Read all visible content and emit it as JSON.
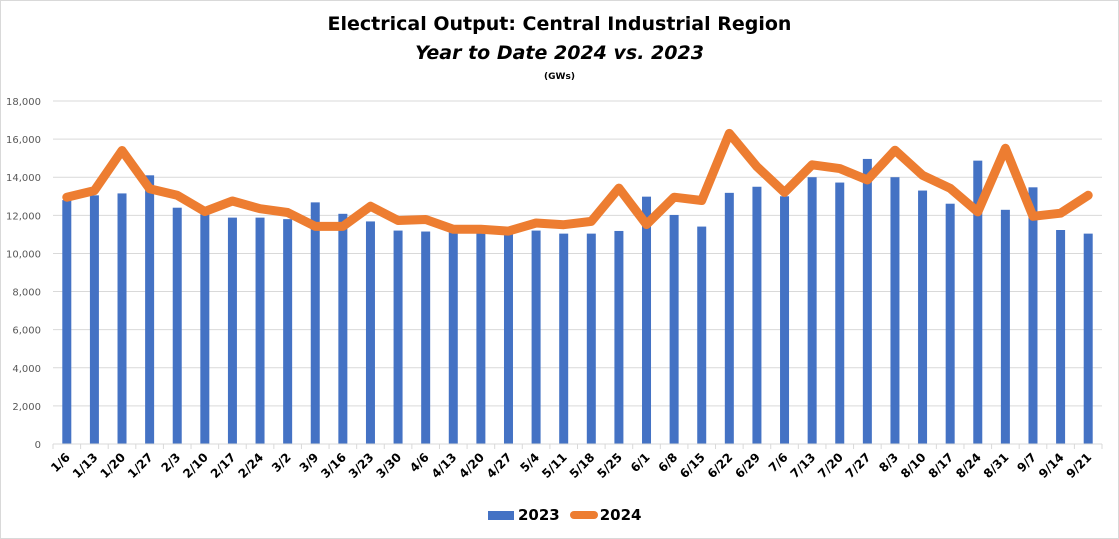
{
  "chart_data": {
    "type": "bar+line",
    "title": "Electrical Output:  Central Industrial Region",
    "subtitle": "Year to Date 2024 vs. 2023",
    "units": "(GWs)",
    "xlabel": "",
    "ylabel": "",
    "ylim": [
      0,
      18000
    ],
    "yticks": [
      0,
      2000,
      4000,
      6000,
      8000,
      10000,
      12000,
      14000,
      16000,
      18000
    ],
    "ytick_labels": [
      "0",
      "2,000",
      "4,000",
      "6,000",
      "8,000",
      "10,000",
      "12,000",
      "14,000",
      "16,000",
      "18,000"
    ],
    "grid": true,
    "legend_position": "bottom",
    "categories": [
      "1/6",
      "1/13",
      "1/20",
      "1/27",
      "2/3",
      "2/10",
      "2/17",
      "2/24",
      "3/2",
      "3/9",
      "3/16",
      "3/23",
      "3/30",
      "4/6",
      "4/13",
      "4/20",
      "4/27",
      "5/4",
      "5/11",
      "5/18",
      "5/25",
      "6/1",
      "6/8",
      "6/15",
      "6/22",
      "6/29",
      "7/6",
      "7/13",
      "7/20",
      "7/27",
      "8/3",
      "8/10",
      "8/17",
      "8/24",
      "8/31",
      "9/7",
      "9/14",
      "9/21"
    ],
    "series": [
      {
        "name": "2023",
        "type": "bar",
        "color": "#4472c4",
        "values": [
          12800,
          13050,
          13150,
          14100,
          12400,
          12050,
          11880,
          11880,
          11800,
          12680,
          12080,
          11680,
          11200,
          11150,
          11100,
          11100,
          11000,
          11200,
          11040,
          11040,
          11180,
          12980,
          12020,
          11410,
          13180,
          13500,
          13000,
          14000,
          13720,
          14960,
          14000,
          13300,
          12610,
          14870,
          12290,
          13470,
          11230,
          11040
        ]
      },
      {
        "name": "2024",
        "type": "line",
        "color": "#ed7d31",
        "values": [
          12950,
          13300,
          15400,
          13400,
          13050,
          12200,
          12750,
          12350,
          12150,
          11420,
          11420,
          12480,
          11730,
          11780,
          11270,
          11270,
          11170,
          11600,
          11510,
          11680,
          13430,
          11520,
          12950,
          12780,
          16300,
          14560,
          13200,
          14650,
          14450,
          13860,
          15420,
          14100,
          13420,
          12180,
          15520,
          11950,
          12110,
          13050
        ]
      }
    ]
  }
}
